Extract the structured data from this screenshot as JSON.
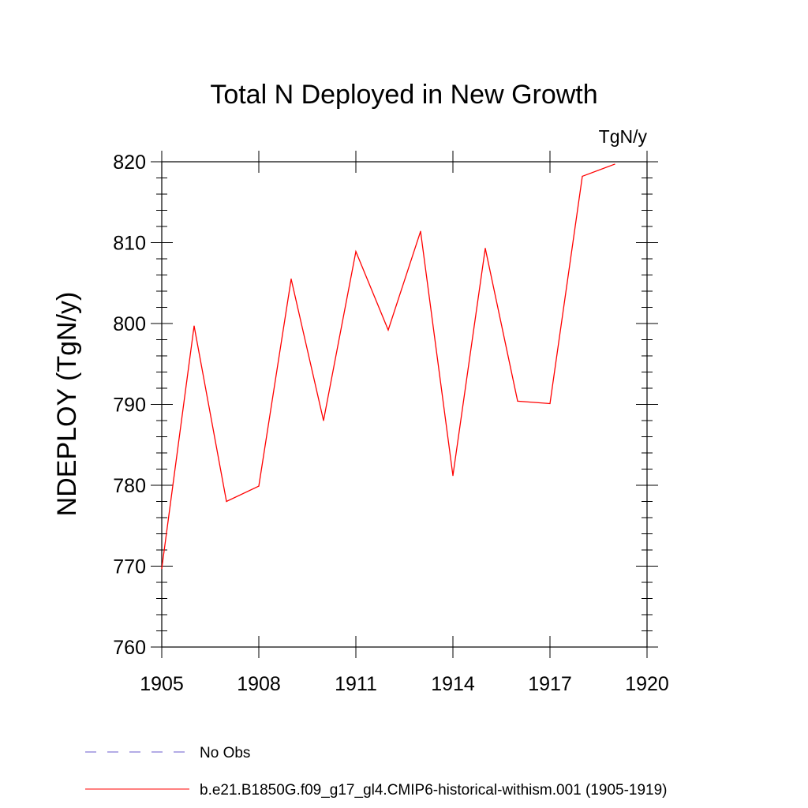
{
  "chart_data": {
    "type": "line",
    "title": "Total N Deployed in New Growth",
    "units_label": "TgN/y",
    "ylabel": "NDEPLOY  (TgN/y)",
    "xlabel": "",
    "xlim": [
      1905,
      1920
    ],
    "ylim": [
      760,
      820
    ],
    "x_ticks": [
      1905,
      1908,
      1911,
      1914,
      1917,
      1920
    ],
    "y_ticks": [
      760,
      770,
      780,
      790,
      800,
      810,
      820
    ],
    "grid": false,
    "legend_placement": "bottom-left, below plot",
    "series": [
      {
        "name": "b.e21.B1850G.f09_g17_gl4.CMIP6-historical-withism.001 (1905-1919)",
        "color": "#ff0000",
        "dash": "solid",
        "x": [
          1905,
          1906,
          1907,
          1908,
          1909,
          1910,
          1911,
          1912,
          1913,
          1914,
          1915,
          1916,
          1917,
          1918,
          1919
        ],
        "y": [
          769.7,
          799.7,
          778.0,
          779.9,
          805.5,
          788.0,
          808.9,
          799.2,
          811.4,
          781.2,
          809.3,
          790.4,
          790.1,
          818.2,
          819.7
        ]
      }
    ],
    "legend": [
      {
        "label": "No Obs",
        "color": "#6a5acd",
        "dash": "dashed"
      },
      {
        "label": "b.e21.B1850G.f09_g17_gl4.CMIP6-historical-withism.001 (1905-1919)",
        "color": "#ff0000",
        "dash": "solid"
      }
    ]
  }
}
